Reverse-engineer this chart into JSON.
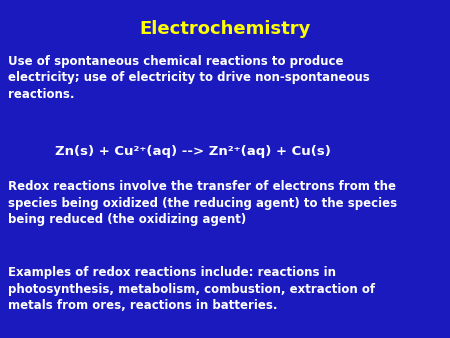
{
  "title": "Electrochemistry",
  "title_color": "#FFFF00",
  "title_fontsize": 13,
  "background_color": "#1a1abf",
  "text_color": "#FFFFFF",
  "body_fontsize": 8.5,
  "equation_fontsize": 9.5,
  "equation_color": "#FFFFFF",
  "paragraph1": "Use of spontaneous chemical reactions to produce\nelectricity; use of electricity to drive non-spontaneous\nreactions.",
  "eq_text": "Zn(s) + Cu²⁺(aq) --> Zn²⁺(aq) + Cu(s)",
  "paragraph2": "Redox reactions involve the transfer of electrons from the\nspecies being oxidized (the reducing agent) to the species\nbeing reduced (the oxidizing agent)",
  "paragraph3": "Examples of redox reactions include: reactions in\nphotosynthesis, metabolism, combustion, extraction of\nmetals from ores, reactions in batteries."
}
